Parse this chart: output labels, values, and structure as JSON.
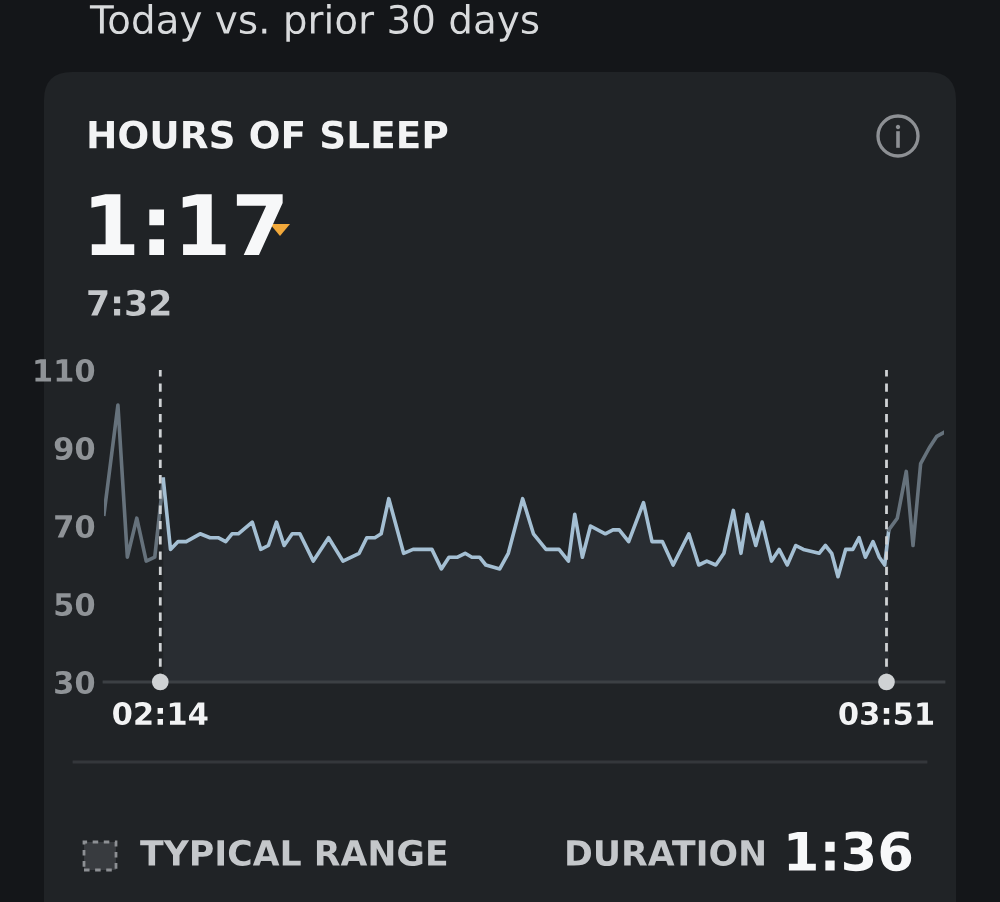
{
  "chart_data": {
    "type": "line",
    "title": "HOURS OF SLEEP",
    "subtitle": "1:17",
    "annotations": [
      "Today vs. prior 30 days",
      "7:32",
      "TYPICAL RANGE",
      "DURATION",
      "1:36"
    ],
    "series": [
      {
        "color": "#66727c",
        "x": [
          2.108,
          2.139,
          2.16,
          2.181,
          2.202,
          2.221,
          2.24
        ],
        "values": [
          73,
          101,
          62,
          72,
          61,
          62,
          82
        ]
      },
      {
        "type": "area",
        "color": "#a4bfd3",
        "x": [
          2.24,
          2.256,
          2.273,
          2.291,
          2.322,
          2.344,
          2.362,
          2.379,
          2.393,
          2.407,
          2.438,
          2.457,
          2.474,
          2.492,
          2.509,
          2.527,
          2.544,
          2.574,
          2.608,
          2.64,
          2.676,
          2.693,
          2.711,
          2.725,
          2.742,
          2.775,
          2.796,
          2.838,
          2.859,
          2.876,
          2.895,
          2.912,
          2.927,
          2.944,
          2.958,
          2.989,
          3.008,
          3.04,
          3.064,
          3.092,
          3.121,
          3.142,
          3.156,
          3.173,
          3.191,
          3.224,
          3.241,
          3.255,
          3.276,
          3.309,
          3.328,
          3.351,
          3.375,
          3.41,
          3.432,
          3.45,
          3.47,
          3.488,
          3.509,
          3.526,
          3.54,
          3.559,
          3.573,
          3.594,
          3.611,
          3.629,
          3.648,
          3.665,
          3.7,
          3.714,
          3.728,
          3.742,
          3.759,
          3.775,
          3.789,
          3.803,
          3.82,
          3.834,
          3.846,
          3.855
        ],
        "values": [
          82,
          64,
          66,
          66,
          68,
          67,
          67,
          66,
          68,
          68,
          71,
          64,
          65,
          71,
          65,
          68,
          68,
          61,
          67,
          61,
          63,
          67,
          67,
          68,
          77,
          63,
          64,
          64,
          59,
          62,
          62,
          63,
          62,
          62,
          60,
          59,
          63,
          77,
          68,
          64,
          64,
          61,
          73,
          62,
          70,
          68,
          69,
          69,
          66,
          76,
          66,
          66,
          60,
          68,
          60,
          61,
          60,
          63,
          74,
          63,
          73,
          65,
          71,
          61,
          64,
          60,
          65,
          64,
          63,
          65,
          63,
          57,
          64,
          64,
          67,
          62,
          66,
          62,
          60,
          69
        ]
      },
      {
        "color": "#66727c",
        "x": [
          3.855,
          3.874,
          3.894,
          3.909,
          3.926,
          3.945,
          3.962,
          3.978
        ],
        "values": [
          69,
          72,
          84,
          65,
          86,
          90,
          93,
          94
        ]
      }
    ],
    "xlim": [
      2.108,
      3.978
    ],
    "xticks": [
      {
        "value": 2.2333,
        "label": "02:14"
      },
      {
        "value": 3.85,
        "label": "03:51"
      }
    ],
    "ylim": [
      30,
      110
    ],
    "yticks": [
      30,
      50,
      70,
      90,
      110
    ],
    "ref_lines": [
      {
        "axis": "x",
        "value": 2.2333,
        "color": "#cfd2d4",
        "line_style": "dashed"
      },
      {
        "axis": "x",
        "value": 3.85,
        "color": "#cfd2d4",
        "line_style": "dashed"
      }
    ]
  }
}
